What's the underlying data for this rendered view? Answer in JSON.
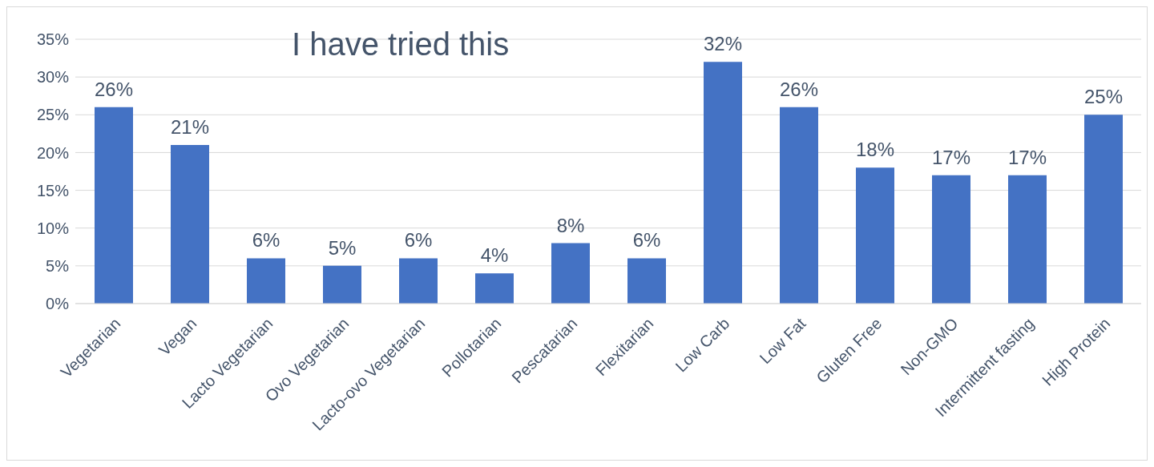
{
  "chart_data": {
    "type": "bar",
    "title": "I have tried this",
    "categories": [
      "Vegetarian",
      "Vegan",
      "Lacto Vegetarian",
      "Ovo Vegetarian",
      "Lacto-ovo Vegetarian",
      "Pollotarian",
      "Pescatarian",
      "Flexitarian",
      "Low Carb",
      "Low Fat",
      "Gluten Free",
      "Non-GMO",
      "Intermittent fasting",
      "High Protein"
    ],
    "values": [
      26,
      21,
      6,
      5,
      6,
      4,
      8,
      6,
      32,
      26,
      18,
      17,
      17,
      25
    ],
    "value_labels": [
      "26%",
      "21%",
      "6%",
      "5%",
      "6%",
      "4%",
      "8%",
      "6%",
      "32%",
      "26%",
      "18%",
      "17%",
      "17%",
      "25%"
    ],
    "color": "#4472c4",
    "ylim": [
      0,
      35
    ],
    "yticks": [
      {
        "value": 0,
        "label": "0%"
      },
      {
        "value": 5,
        "label": "5%"
      },
      {
        "value": 10,
        "label": "10%"
      },
      {
        "value": 15,
        "label": "15%"
      },
      {
        "value": 20,
        "label": "20%"
      },
      {
        "value": 25,
        "label": "25%"
      },
      {
        "value": 30,
        "label": "30%"
      },
      {
        "value": 35,
        "label": "35%"
      }
    ],
    "grid": "y"
  }
}
